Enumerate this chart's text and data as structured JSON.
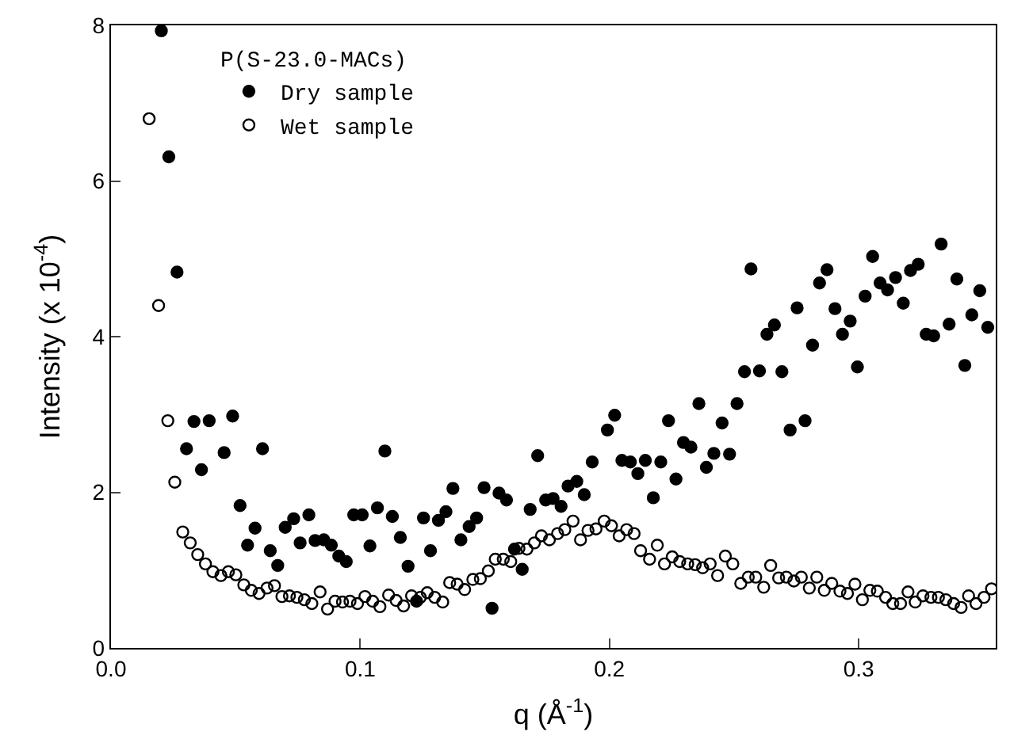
{
  "chart_data": {
    "type": "scatter",
    "xlabel": "q (Å$^{-1}$)",
    "ylabel": "Intensity (x 10$^{-4}$)",
    "legend_title": "P(S-23.0-MACs)",
    "legend": "top left",
    "xlim": [
      0,
      0.355
    ],
    "ylim": [
      0,
      8
    ],
    "xticks": [
      {
        "value": 0,
        "label": "0.0"
      },
      {
        "value": 0.1,
        "label": "0.1"
      },
      {
        "value": 0.2,
        "label": "0.2"
      },
      {
        "value": 0.3,
        "label": "0.3"
      }
    ],
    "yticks": [
      0,
      2,
      4,
      6,
      8
    ],
    "series": [
      {
        "name": "Dry sample",
        "color": "#000000",
        "marker": "circle",
        "x": [
          0.0202,
          0.0232,
          0.0265,
          0.0303,
          0.0333,
          0.0363,
          0.0394,
          0.0454,
          0.0488,
          0.0518,
          0.0548,
          0.0578,
          0.0608,
          0.0639,
          0.0669,
          0.0699,
          0.0733,
          0.0759,
          0.0794,
          0.0819,
          0.0854,
          0.0884,
          0.0914,
          0.0944,
          0.0974,
          0.1008,
          0.1039,
          0.1069,
          0.1099,
          0.1129,
          0.1161,
          0.1192,
          0.1226,
          0.1254,
          0.1282,
          0.1314,
          0.1344,
          0.1372,
          0.1404,
          0.1437,
          0.1467,
          0.1497,
          0.1529,
          0.1557,
          0.1587,
          0.1619,
          0.165,
          0.1682,
          0.1712,
          0.1744,
          0.1774,
          0.1806,
          0.1834,
          0.1869,
          0.1899,
          0.1931,
          0.1992,
          0.2021,
          0.205,
          0.2084,
          0.2114,
          0.2144,
          0.2176,
          0.2206,
          0.2237,
          0.2267,
          0.2297,
          0.2327,
          0.2359,
          0.2389,
          0.2419,
          0.2452,
          0.2482,
          0.2512,
          0.2542,
          0.2568,
          0.2602,
          0.2632,
          0.2662,
          0.2692,
          0.2725,
          0.2753,
          0.2785,
          0.2815,
          0.2843,
          0.2873,
          0.2905,
          0.2935,
          0.2966,
          0.2995,
          0.3026,
          0.3056,
          0.3086,
          0.3116,
          0.3148,
          0.3179,
          0.3208,
          0.3239,
          0.3271,
          0.3301,
          0.3331,
          0.3363,
          0.3394,
          0.3426,
          0.3454,
          0.3486,
          0.3518
        ],
        "values": [
          7.93,
          6.31,
          4.83,
          2.56,
          2.91,
          2.29,
          2.92,
          2.51,
          2.98,
          1.83,
          1.32,
          1.54,
          2.56,
          1.25,
          1.06,
          1.55,
          1.66,
          1.35,
          1.71,
          1.38,
          1.39,
          1.32,
          1.18,
          1.11,
          1.71,
          1.71,
          1.31,
          1.8,
          2.53,
          1.69,
          1.42,
          1.05,
          0.6,
          1.67,
          1.25,
          1.64,
          1.75,
          2.05,
          1.39,
          1.56,
          1.67,
          2.06,
          0.51,
          1.99,
          1.9,
          1.27,
          1.01,
          1.78,
          2.47,
          1.9,
          1.92,
          1.82,
          2.08,
          2.14,
          1.97,
          2.39,
          2.8,
          2.99,
          2.41,
          2.39,
          2.24,
          2.41,
          1.93,
          2.39,
          2.92,
          2.17,
          2.64,
          2.58,
          3.14,
          2.32,
          2.5,
          2.89,
          2.49,
          3.14,
          3.55,
          4.87,
          3.56,
          4.03,
          4.15,
          3.55,
          2.8,
          4.37,
          2.92,
          3.89,
          4.69,
          4.86,
          4.36,
          4.03,
          4.2,
          3.61,
          4.52,
          5.03,
          4.69,
          4.6,
          4.76,
          4.43,
          4.85,
          4.93,
          4.03,
          4.01,
          5.19,
          4.16,
          4.74,
          3.63,
          4.28,
          4.59,
          4.12
        ]
      },
      {
        "name": "Wet sample",
        "color": "#000000",
        "marker": "circle-open",
        "x": [
          0.0153,
          0.0191,
          0.0228,
          0.0256,
          0.0288,
          0.0318,
          0.0348,
          0.0379,
          0.0409,
          0.0441,
          0.0471,
          0.0501,
          0.0533,
          0.0563,
          0.0594,
          0.0626,
          0.0656,
          0.0686,
          0.0716,
          0.0746,
          0.0776,
          0.0806,
          0.0839,
          0.0869,
          0.0899,
          0.0929,
          0.0959,
          0.0989,
          0.1019,
          0.105,
          0.1079,
          0.1114,
          0.1144,
          0.1174,
          0.1206,
          0.1241,
          0.1269,
          0.1299,
          0.1331,
          0.1359,
          0.1389,
          0.1419,
          0.1452,
          0.1482,
          0.1514,
          0.1542,
          0.1574,
          0.1604,
          0.1637,
          0.1669,
          0.1699,
          0.1727,
          0.1759,
          0.1792,
          0.1821,
          0.1854,
          0.1884,
          0.1914,
          0.1946,
          0.1979,
          0.2008,
          0.2039,
          0.2069,
          0.2099,
          0.2125,
          0.2161,
          0.2192,
          0.2221,
          0.2252,
          0.2282,
          0.2314,
          0.2344,
          0.2374,
          0.2404,
          0.2434,
          0.2465,
          0.2495,
          0.2527,
          0.2557,
          0.2587,
          0.2619,
          0.2647,
          0.2679,
          0.271,
          0.274,
          0.277,
          0.2802,
          0.2832,
          0.2862,
          0.2892,
          0.2925,
          0.2955,
          0.2985,
          0.3015,
          0.3045,
          0.3075,
          0.3108,
          0.3137,
          0.3168,
          0.3198,
          0.3227,
          0.3258,
          0.329,
          0.332,
          0.335,
          0.3381,
          0.3411,
          0.3441,
          0.3471,
          0.3503,
          0.3533
        ],
        "values": [
          6.8,
          4.4,
          2.92,
          2.13,
          1.49,
          1.35,
          1.2,
          1.08,
          0.98,
          0.93,
          0.98,
          0.94,
          0.81,
          0.74,
          0.7,
          0.77,
          0.8,
          0.66,
          0.67,
          0.65,
          0.62,
          0.57,
          0.72,
          0.5,
          0.6,
          0.59,
          0.6,
          0.57,
          0.66,
          0.6,
          0.53,
          0.68,
          0.61,
          0.54,
          0.67,
          0.65,
          0.71,
          0.65,
          0.59,
          0.84,
          0.82,
          0.75,
          0.88,
          0.89,
          0.99,
          1.14,
          1.14,
          1.11,
          1.28,
          1.27,
          1.35,
          1.44,
          1.39,
          1.47,
          1.52,
          1.63,
          1.39,
          1.51,
          1.53,
          1.63,
          1.57,
          1.44,
          1.52,
          1.47,
          1.25,
          1.14,
          1.32,
          1.08,
          1.17,
          1.11,
          1.08,
          1.07,
          1.03,
          1.08,
          0.93,
          1.18,
          1.08,
          0.83,
          0.91,
          0.91,
          0.78,
          1.06,
          0.9,
          0.91,
          0.86,
          0.91,
          0.77,
          0.91,
          0.74,
          0.83,
          0.73,
          0.7,
          0.82,
          0.62,
          0.74,
          0.73,
          0.65,
          0.57,
          0.57,
          0.72,
          0.59,
          0.67,
          0.65,
          0.65,
          0.62,
          0.57,
          0.52,
          0.67,
          0.57,
          0.65,
          0.76
        ]
      }
    ]
  }
}
